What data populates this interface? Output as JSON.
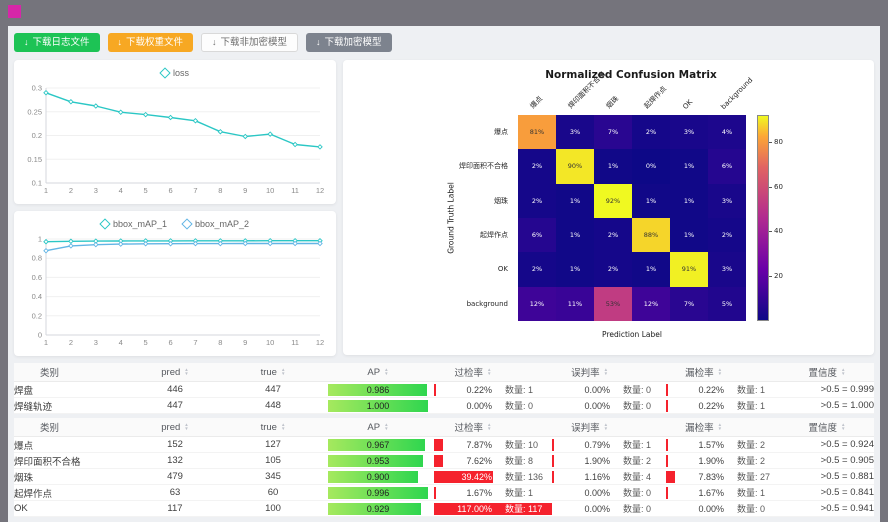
{
  "toolbar": {
    "download_icon_glyph": "↓",
    "buttons": [
      {
        "label": "下载日志文件"
      },
      {
        "label": "下载权重文件"
      },
      {
        "label": "下载非加密模型"
      },
      {
        "label": "下载加密模型"
      }
    ]
  },
  "chart_data": [
    {
      "type": "line",
      "title": "",
      "legend_position": "top",
      "x": [
        1,
        2,
        3,
        4,
        5,
        6,
        7,
        8,
        9,
        10,
        11,
        12
      ],
      "series": [
        {
          "name": "loss",
          "color": "#2bc7c5",
          "values": [
            0.29,
            0.271,
            0.262,
            0.249,
            0.244,
            0.238,
            0.231,
            0.208,
            0.198,
            0.203,
            0.181,
            0.176
          ]
        }
      ],
      "ylim": [
        0.1,
        0.3
      ],
      "yticks": [
        0.1,
        0.15,
        0.2,
        0.25,
        0.3
      ],
      "grid": true
    },
    {
      "type": "line",
      "title": "",
      "legend_position": "top",
      "x": [
        1,
        2,
        3,
        4,
        5,
        6,
        7,
        8,
        9,
        10,
        11,
        12
      ],
      "series": [
        {
          "name": "bbox_mAP_1",
          "color": "#2bc7c5",
          "values": [
            0.972,
            0.976,
            0.978,
            0.979,
            0.98,
            0.98,
            0.981,
            0.981,
            0.981,
            0.982,
            0.982,
            0.982
          ]
        },
        {
          "name": "bbox_mAP_2",
          "color": "#62b5e5",
          "values": [
            0.878,
            0.928,
            0.941,
            0.947,
            0.95,
            0.951,
            0.952,
            0.952,
            0.953,
            0.953,
            0.953,
            0.953
          ]
        }
      ],
      "ylim": [
        0,
        1
      ],
      "yticks": [
        0,
        0.2,
        0.4,
        0.6,
        0.8,
        1
      ],
      "grid": true
    },
    {
      "type": "heatmap",
      "title": "Normalized Confusion Matrix",
      "xlabel": "Prediction Label",
      "ylabel": "Ground Truth Label",
      "labels": [
        "爆点",
        "焊印面积不合格",
        "烟珠",
        "起焊作点",
        "OK",
        "background"
      ],
      "unit": "%",
      "matrix_percent": [
        [
          81,
          3,
          7,
          2,
          3,
          4
        ],
        [
          2,
          90,
          1,
          0,
          1,
          6
        ],
        [
          2,
          1,
          92,
          1,
          1,
          3
        ],
        [
          6,
          1,
          2,
          88,
          1,
          2
        ],
        [
          2,
          1,
          2,
          1,
          91,
          3
        ],
        [
          12,
          11,
          53,
          12,
          7,
          5
        ]
      ],
      "vmax": 92,
      "colorbar_ticks": [
        20,
        40,
        60,
        80
      ],
      "colormap": "plasma",
      "legend_position": "right"
    }
  ],
  "table_headers": [
    {
      "label": "类别",
      "sortable": false
    },
    {
      "label": "pred",
      "sortable": true
    },
    {
      "label": "true",
      "sortable": true
    },
    {
      "label": "AP",
      "sortable": true
    },
    {
      "label": "过检率",
      "sortable": true
    },
    {
      "label": "误判率",
      "sortable": true
    },
    {
      "label": "漏检率",
      "sortable": true
    },
    {
      "label": "置信度",
      "sortable": true
    }
  ],
  "count_prefix": "数量: ",
  "tables": [
    {
      "rows": [
        {
          "name": "焊盘",
          "pred": "446",
          "true": "447",
          "ap": "0.986",
          "ap_pct": 98.6,
          "rates": [
            {
              "rate": "0.22%",
              "pct": 0.22,
              "count": "1"
            },
            {
              "rate": "0.00%",
              "pct": 0,
              "count": "0"
            },
            {
              "rate": "0.22%",
              "pct": 0.22,
              "count": "1"
            }
          ],
          "confidence": ">0.5 = 0.999"
        },
        {
          "name": "焊缝轨迹",
          "pred": "447",
          "true": "448",
          "ap": "1.000",
          "ap_pct": 100,
          "rates": [
            {
              "rate": "0.00%",
              "pct": 0,
              "count": "0"
            },
            {
              "rate": "0.00%",
              "pct": 0,
              "count": "0"
            },
            {
              "rate": "0.22%",
              "pct": 0.22,
              "count": "1"
            }
          ],
          "confidence": ">0.5 = 1.000"
        }
      ]
    },
    {
      "rows": [
        {
          "name": "爆点",
          "pred": "152",
          "true": "127",
          "ap": "0.967",
          "ap_pct": 96.7,
          "rates": [
            {
              "rate": "7.87%",
              "pct": 7.87,
              "count": "10"
            },
            {
              "rate": "0.79%",
              "pct": 0.79,
              "count": "1"
            },
            {
              "rate": "1.57%",
              "pct": 1.57,
              "count": "2"
            }
          ],
          "confidence": ">0.5 = 0.924"
        },
        {
          "name": "焊印面积不合格",
          "pred": "132",
          "true": "105",
          "ap": "0.953",
          "ap_pct": 95.3,
          "rates": [
            {
              "rate": "7.62%",
              "pct": 7.62,
              "count": "8"
            },
            {
              "rate": "1.90%",
              "pct": 1.9,
              "count": "2"
            },
            {
              "rate": "1.90%",
              "pct": 1.9,
              "count": "2"
            }
          ],
          "confidence": ">0.5 = 0.905"
        },
        {
          "name": "烟珠",
          "pred": "479",
          "true": "345",
          "ap": "0.900",
          "ap_pct": 90,
          "rates": [
            {
              "rate": "39.42%",
              "pct": 39.42,
              "count": "136"
            },
            {
              "rate": "1.16%",
              "pct": 1.16,
              "count": "4"
            },
            {
              "rate": "7.83%",
              "pct": 7.83,
              "count": "27"
            }
          ],
          "confidence": ">0.5 = 0.881"
        },
        {
          "name": "起焊作点",
          "pred": "63",
          "true": "60",
          "ap": "0.996",
          "ap_pct": 99.6,
          "rates": [
            {
              "rate": "1.67%",
              "pct": 1.67,
              "count": "1"
            },
            {
              "rate": "0.00%",
              "pct": 0,
              "count": "0"
            },
            {
              "rate": "1.67%",
              "pct": 1.67,
              "count": "1"
            }
          ],
          "confidence": ">0.5 = 0.841"
        },
        {
          "name": "OK",
          "pred": "117",
          "true": "100",
          "ap": "0.929",
          "ap_pct": 92.9,
          "rates": [
            {
              "rate": "117.00%",
              "pct": 117,
              "count": "117"
            },
            {
              "rate": "0.00%",
              "pct": 0,
              "count": "0"
            },
            {
              "rate": "0.00%",
              "pct": 0,
              "count": "0"
            }
          ],
          "confidence": ">0.5 = 0.941"
        }
      ]
    }
  ],
  "colors": {
    "accent_green": "#1dc355",
    "accent_orange": "#f7a823",
    "button_dark": "#7d838e",
    "ap_bar_from": "#a6e95e",
    "ap_bar_to": "#2fd64f",
    "rate_bar_red": "#f5222d",
    "line_teal": "#2bc7c5",
    "line_blue": "#62b5e5",
    "brand_magenta": "#d627a8"
  }
}
